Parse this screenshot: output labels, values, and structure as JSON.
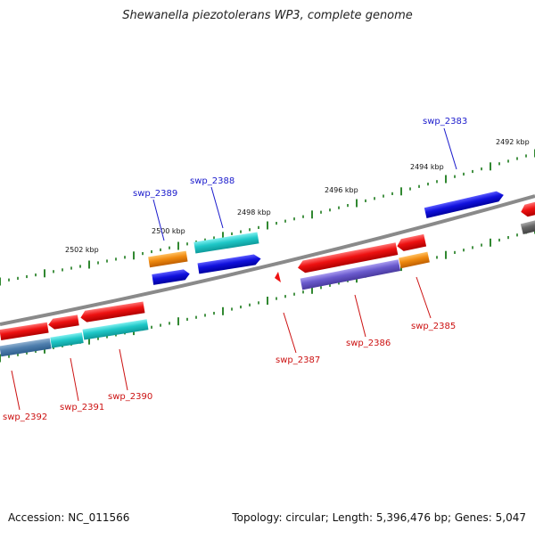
{
  "title": "Shewanella piezotolerans WP3, complete genome",
  "footer": {
    "accession": "Accession: NC_011566",
    "summary": "Topology: circular; Length: 5,396,476 bp; Genes: 5,047"
  },
  "kbp_labels": [
    "2502 kbp",
    "2500 kbp",
    "2498 kbp",
    "2496 kbp",
    "2494 kbp",
    "2492 kbp"
  ],
  "gene_labels_forward": [
    "swp_2389",
    "swp_2388",
    "swp_2383"
  ],
  "gene_labels_reverse": [
    "swp_2392",
    "swp_2391",
    "swp_2390",
    "swp_2387",
    "swp_2386",
    "swp_2385"
  ],
  "colors": {
    "backbone": "#8a8a8a",
    "tick": "#1a7a1a",
    "red": "#ee1111",
    "cyan": "#1fc8c8",
    "blue": "#1111dd",
    "orange": "#f08a10",
    "purple": "#6a5acd",
    "gray": "#666666",
    "fwd_label": "#1a1acc",
    "rev_label": "#cc1111"
  }
}
